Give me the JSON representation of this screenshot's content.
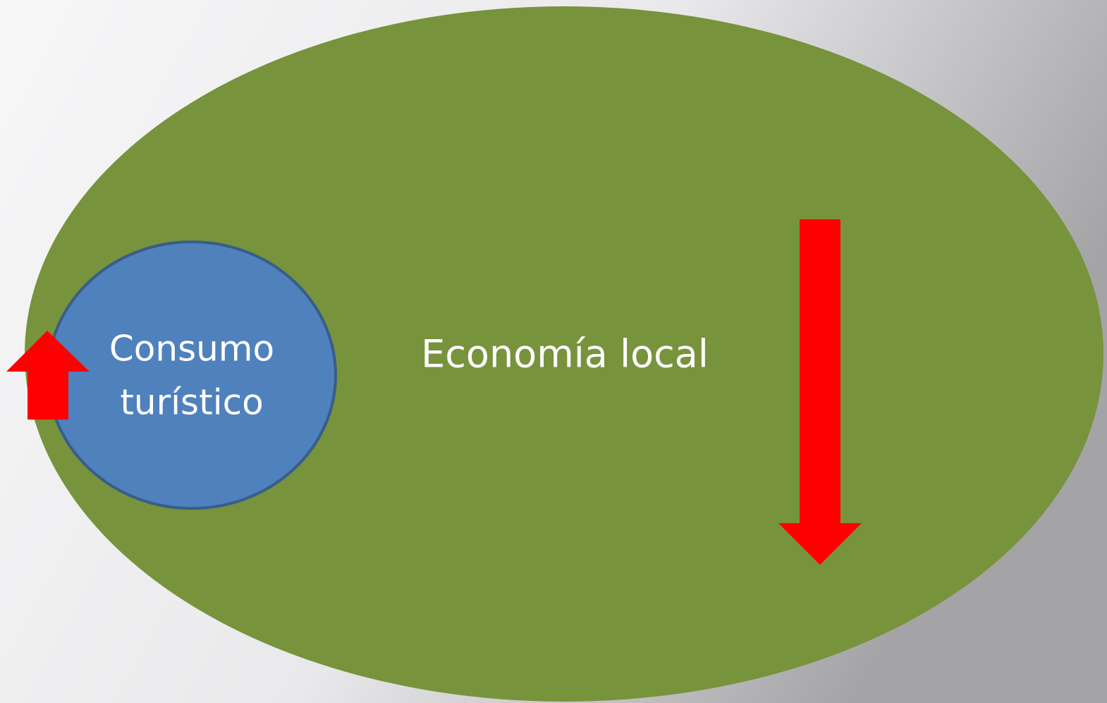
{
  "nodes": [
    {
      "label": [
        "Consumo",
        "turístico"
      ]
    },
    {
      "label": "Economía local"
    }
  ]
}
